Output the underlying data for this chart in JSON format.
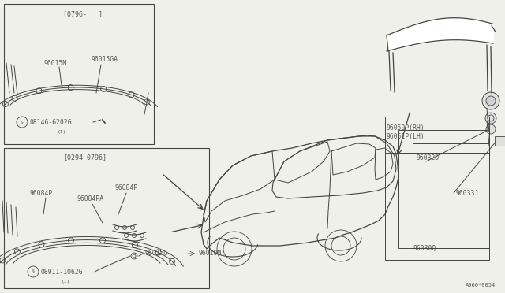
{
  "background_color": "#f0f0eb",
  "line_color": "#444444",
  "text_color": "#555555",
  "diagram_id": "A960*0054",
  "upper_box_label": "[0796-   ]",
  "lower_box_label": "[0294-0796]",
  "fig_width": 6.4,
  "fig_height": 3.72,
  "dpi": 100
}
